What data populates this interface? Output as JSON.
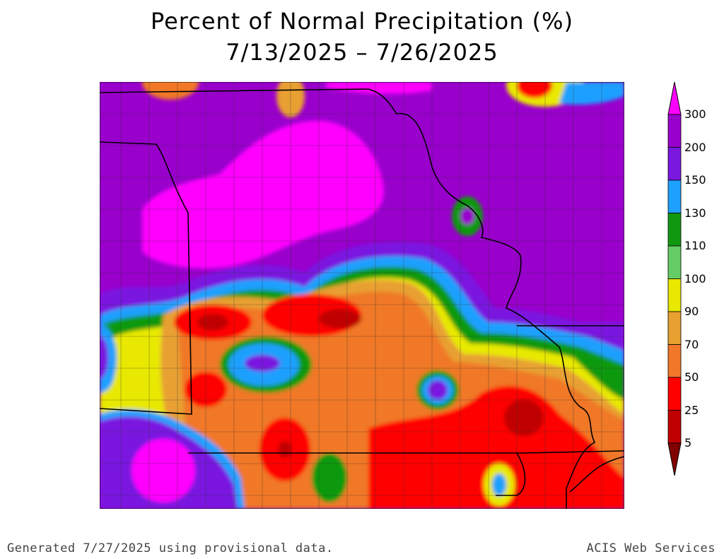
{
  "title": "Percent of Normal Precipitation (%)",
  "subtitle": "7/13/2025 – 7/26/2025",
  "legend": {
    "labels": [
      "300",
      "200",
      "150",
      "130",
      "110",
      "100",
      "90",
      "70",
      "50",
      "25",
      "5"
    ],
    "colors": [
      "#ff00ff",
      "#9900cc",
      "#7a18e0",
      "#1ea0ff",
      "#119911",
      "#66cc66",
      "#e8e800",
      "#e8a030",
      "#f07828",
      "#ff0000",
      "#c00000",
      "#800000"
    ]
  },
  "footer": {
    "left": "Generated 7/27/2025 using provisional data.",
    "right": "ACIS Web Services"
  }
}
